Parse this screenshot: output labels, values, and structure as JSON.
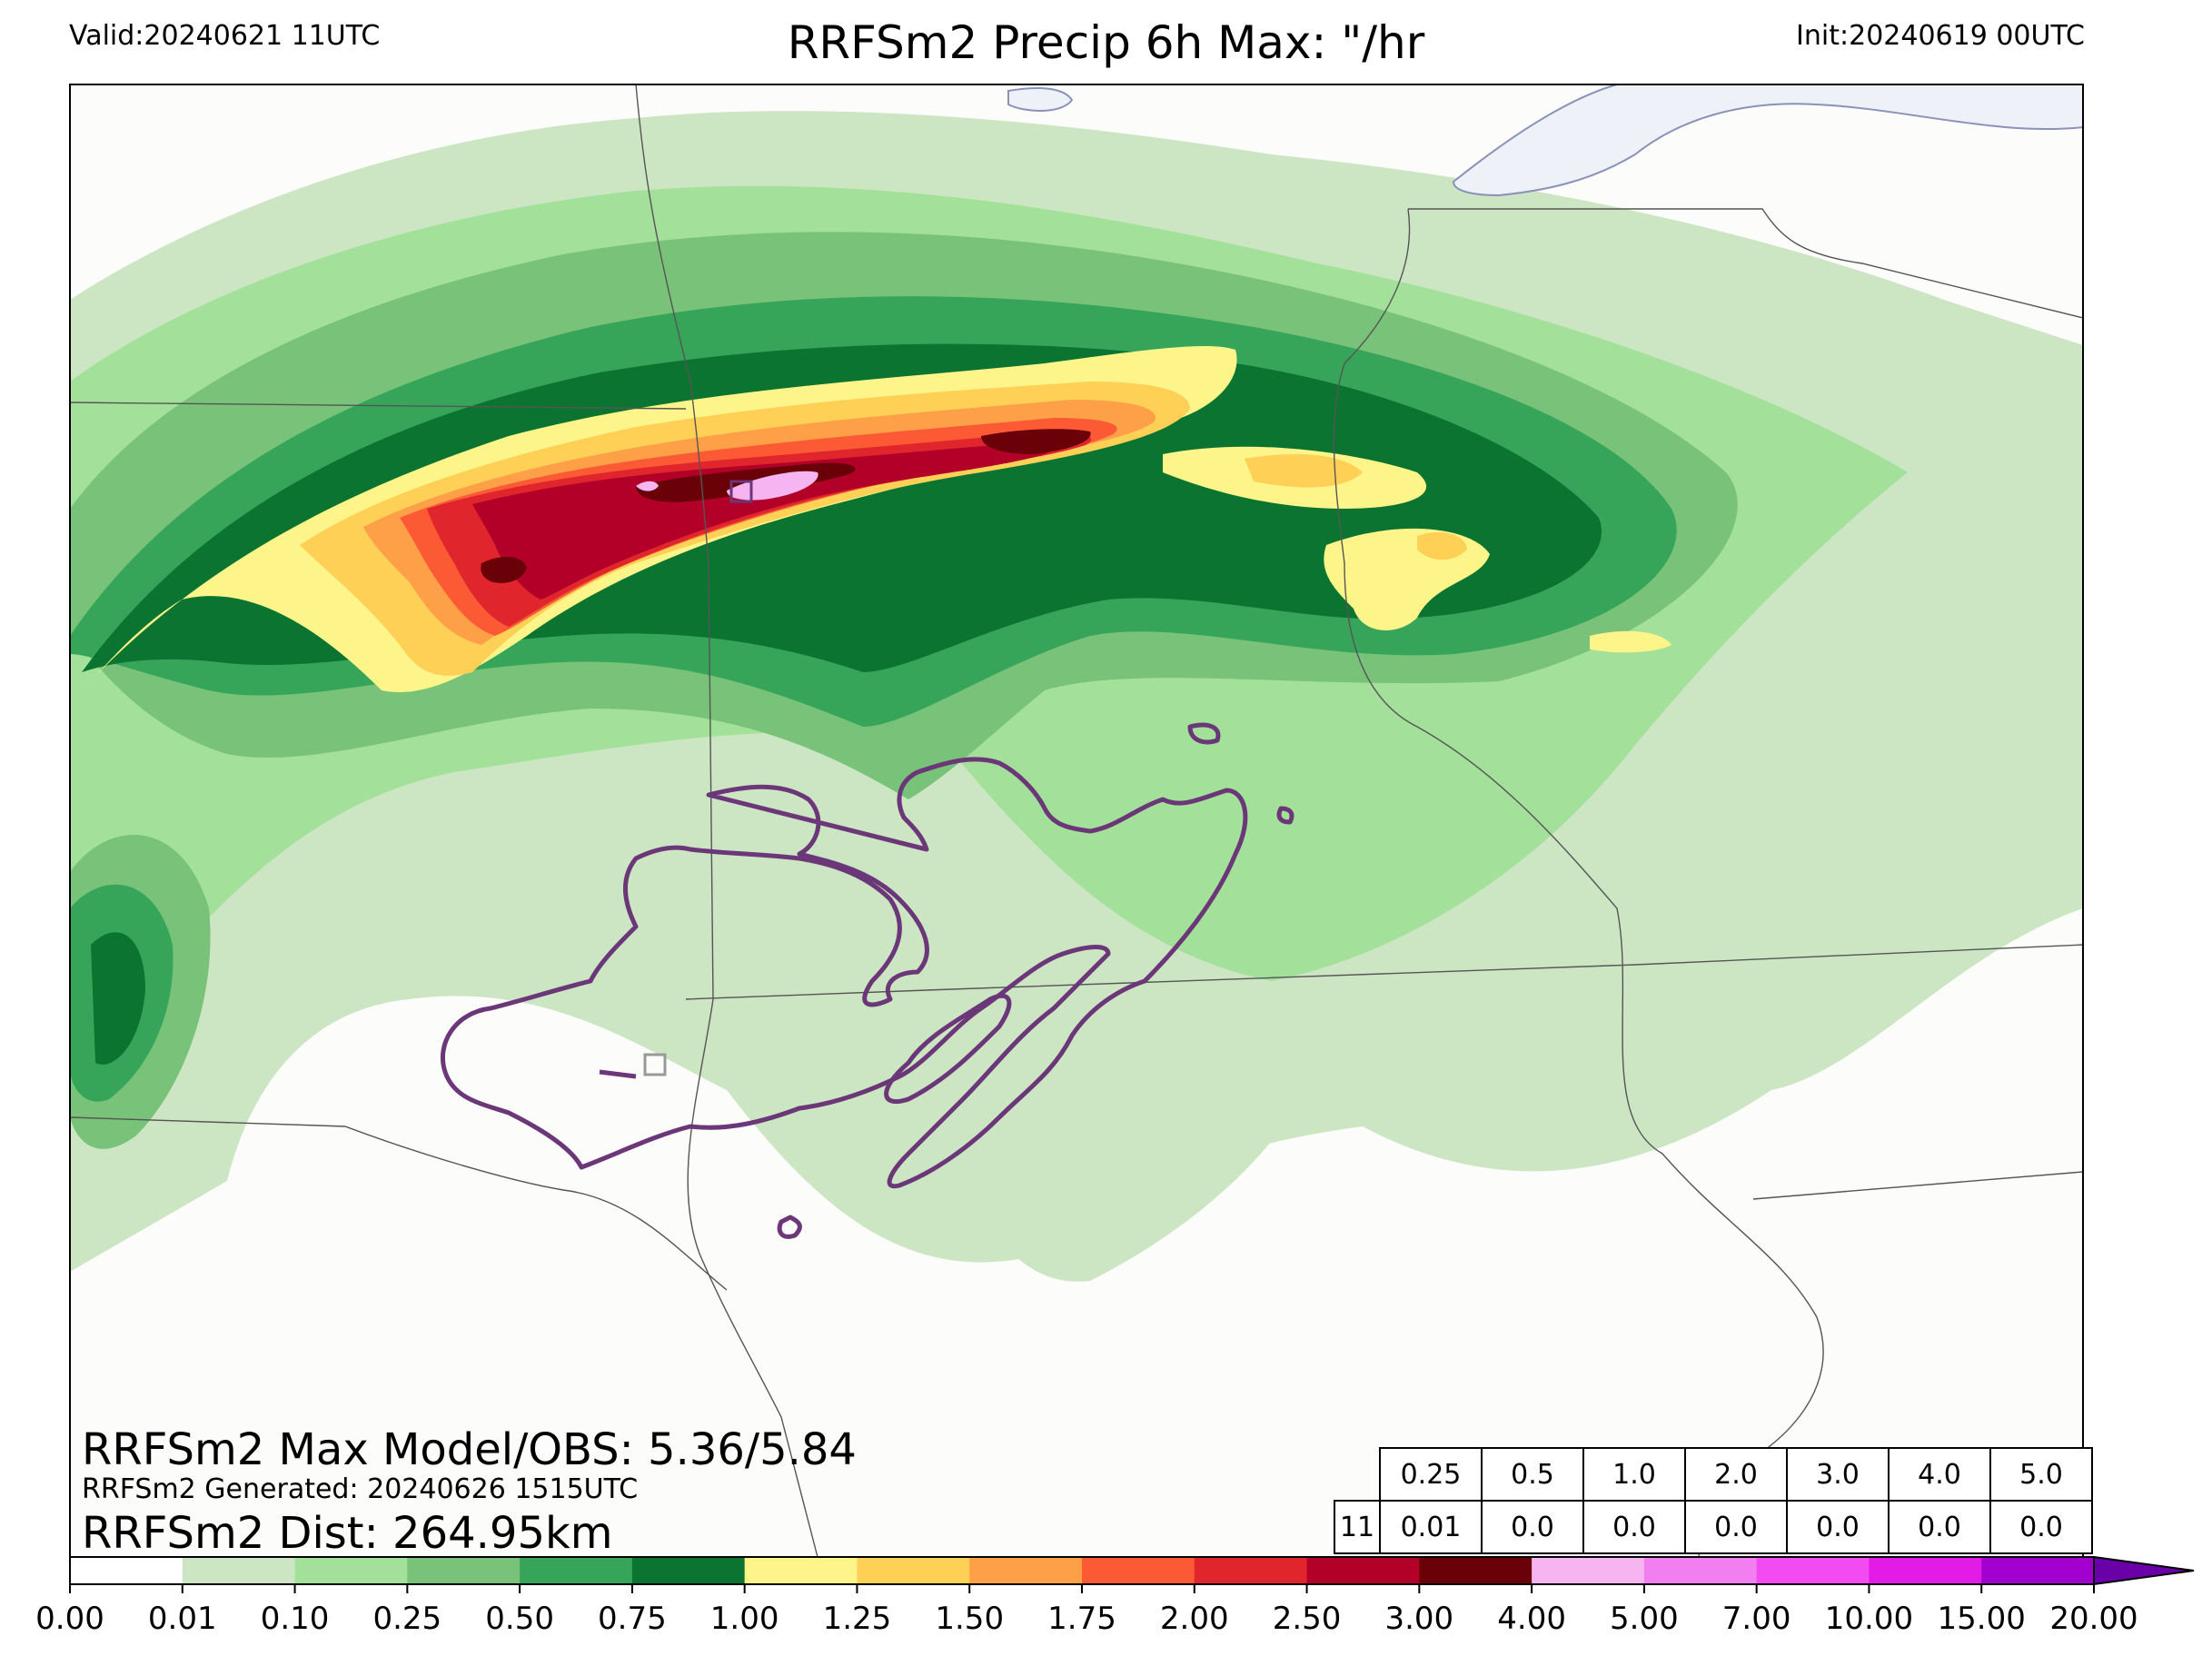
{
  "header": {
    "valid": "Valid:20240621 11UTC",
    "title": "RRFSm2 Precip 6h Max: \"/hr",
    "init": "Init:20240619 00UTC"
  },
  "stats": {
    "max_model_obs": "RRFSm2 Max Model/OBS: 5.36/5.84",
    "generated": "RRFSm2 Generated: 20240626 1515UTC",
    "dist": "RRFSm2 Dist: 264.95km"
  },
  "table": {
    "thresholds": [
      "0.25",
      "0.5",
      "1.0",
      "2.0",
      "3.0",
      "4.0",
      "5.0"
    ],
    "row_label": "11",
    "values": [
      "0.01",
      "0.0",
      "0.0",
      "0.0",
      "0.0",
      "0.0",
      "0.0"
    ]
  },
  "colorbar": {
    "labels": [
      "0.00",
      "0.01",
      "0.10",
      "0.25",
      "0.50",
      "0.75",
      "1.00",
      "1.25",
      "1.50",
      "1.75",
      "2.00",
      "2.50",
      "3.00",
      "4.00",
      "5.00",
      "7.00",
      "10.00",
      "15.00",
      "20.00"
    ],
    "colors": [
      "#ffffff",
      "#cce6c4",
      "#a3e09a",
      "#78c279",
      "#36a55a",
      "#0b7431",
      "#fdf58a",
      "#ffd056",
      "#fda048",
      "#fb5a35",
      "#e0262c",
      "#b20029",
      "#6a0008",
      "#f6b5f0",
      "#f27ff0",
      "#f24bf2",
      "#e21be6",
      "#a100cf"
    ],
    "extend_color": "#6a00a8"
  },
  "colors": {
    "map_bg": "#fcfcfb",
    "lake": "#eef2f8",
    "obs_contour": "#6b3778"
  }
}
